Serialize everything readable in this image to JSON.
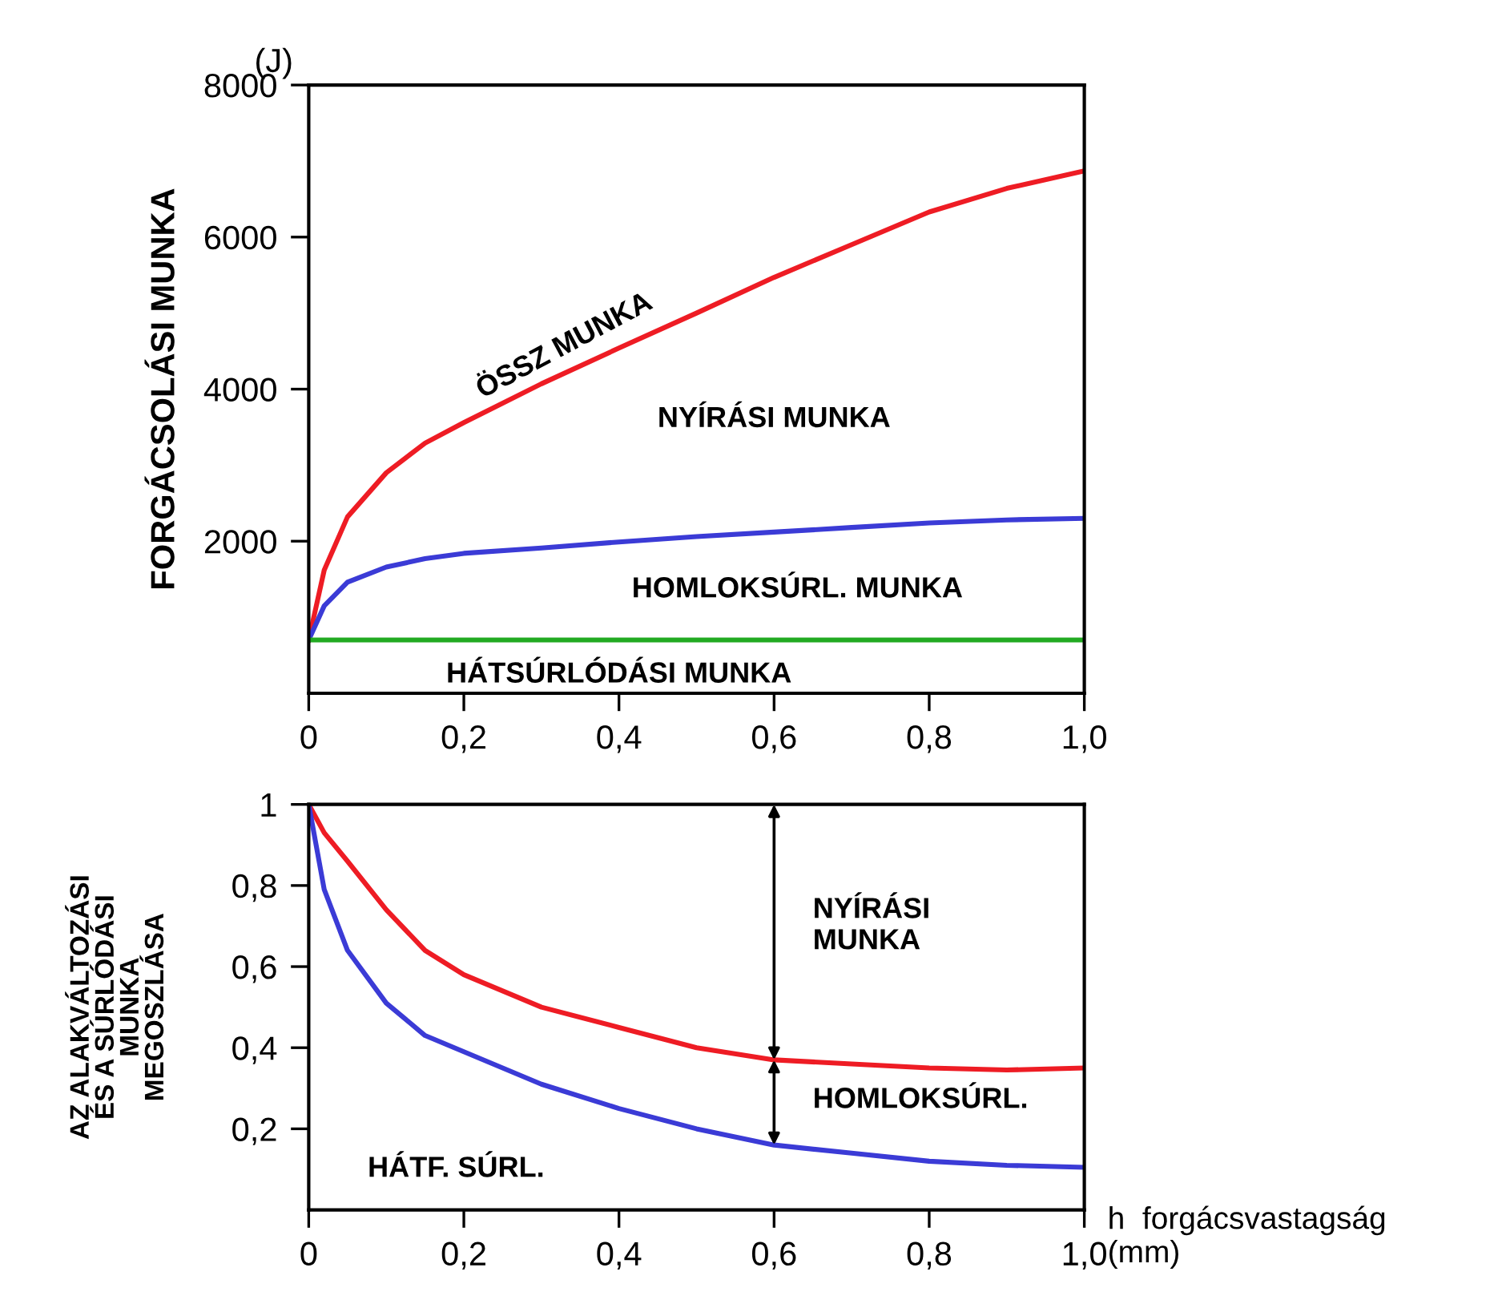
{
  "chart_data": [
    {
      "type": "line",
      "ylabel": "FORGÁCSOLÁSI MUNKA",
      "xlim": [
        0,
        1.0
      ],
      "ylim": [
        0,
        8000
      ],
      "xticks": [
        0,
        {
          "value": 0.2,
          "label": "0,2"
        },
        {
          "value": 0.4,
          "label": "0,4"
        },
        {
          "value": 0.6,
          "label": "0,6"
        },
        {
          "value": 0.8,
          "label": "0,8"
        },
        {
          "value": 1.0,
          "label": "1,0"
        }
      ],
      "yticks": [
        2000,
        4000,
        6000,
        8000
      ],
      "x": [
        0,
        0.02,
        0.05,
        0.1,
        0.15,
        0.2,
        0.3,
        0.4,
        0.5,
        0.6,
        0.7,
        0.8,
        0.9,
        1.0
      ],
      "series": [
        {
          "color": "#ee1c24",
          "values": [
            700,
            1620,
            2320,
            2900,
            3290,
            3560,
            4070,
            4540,
            5000,
            5470,
            5900,
            6330,
            6640,
            6870
          ]
        },
        {
          "color": "#3b3bd6",
          "values": [
            700,
            1150,
            1460,
            1660,
            1770,
            1840,
            1910,
            1990,
            2060,
            2120,
            2180,
            2240,
            2280,
            2300
          ]
        },
        {
          "color": "#22aa22",
          "values": [
            700,
            700,
            700,
            700,
            700,
            700,
            700,
            700,
            700,
            700,
            700,
            700,
            700,
            700
          ]
        }
      ],
      "annotations": [
        "(J)",
        "ÖSSZ MUNKA",
        "NYÍRÁSI MUNKA",
        "HOMLOKSÚRL. MUNKA",
        "HÁTSÚRLÓDÁSI MUNKA"
      ],
      "grid": false,
      "legend": false
    },
    {
      "type": "line",
      "ylabel": "AZ ALAKVÁLTOZÁSI\nÉS A SÚRLÓDÁSI\nMUNKA\nMEGOSZLÁSA",
      "xlabel": "h  forgácsvastagság\n(mm)",
      "xlim": [
        0,
        1.0
      ],
      "ylim": [
        0,
        1
      ],
      "xticks": [
        0,
        {
          "value": 0.2,
          "label": "0,2"
        },
        {
          "value": 0.4,
          "label": "0,4"
        },
        {
          "value": 0.6,
          "label": "0,6"
        },
        {
          "value": 0.8,
          "label": "0,8"
        },
        {
          "value": 1.0,
          "label": "1,0"
        }
      ],
      "yticks": [
        {
          "value": 0.2,
          "label": "0,2"
        },
        {
          "value": 0.4,
          "label": "0,4"
        },
        {
          "value": 0.6,
          "label": "0,6"
        },
        {
          "value": 0.8,
          "label": "0,8"
        },
        1
      ],
      "x": [
        0,
        0.02,
        0.05,
        0.1,
        0.15,
        0.2,
        0.3,
        0.4,
        0.5,
        0.6,
        0.7,
        0.8,
        0.9,
        1.0
      ],
      "series": [
        {
          "color": "#ee1c24",
          "values": [
            1.0,
            0.93,
            0.86,
            0.74,
            0.64,
            0.58,
            0.5,
            0.45,
            0.4,
            0.37,
            0.36,
            0.35,
            0.345,
            0.35
          ]
        },
        {
          "color": "#3b3bd6",
          "values": [
            1.0,
            0.79,
            0.64,
            0.51,
            0.43,
            0.39,
            0.31,
            0.25,
            0.2,
            0.16,
            0.14,
            0.12,
            0.11,
            0.105
          ]
        }
      ],
      "annotations": [
        "NYÍRÁSI\nMUNKA",
        "HOMLOKSÚRL.",
        "HÁTF. SÚRL."
      ],
      "grid": false,
      "legend": false
    }
  ]
}
